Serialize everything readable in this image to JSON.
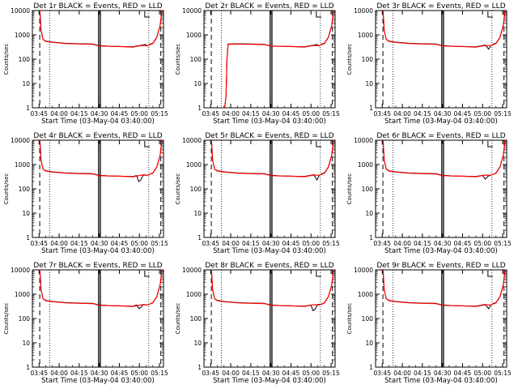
{
  "colors": {
    "events": "#000000",
    "lld": "#ff0000",
    "background": "#ffffff"
  },
  "xlabel": "Start Time (03-May-04 03:40:00)",
  "ylabel": "Counts/sec",
  "x_ticks": [
    "03:45",
    "04:00",
    "04:15",
    "04:30",
    "04:45",
    "05:00",
    "05:15"
  ],
  "y_ticks": [
    "1",
    "10",
    "100",
    "1000",
    "10000"
  ],
  "chart_data": [
    {
      "type": "line",
      "title": "Det 1r BLACK = Events, RED = LLD",
      "yscale": "log",
      "ylim": [
        1,
        10000
      ],
      "xlim_minutes": [
        0,
        98
      ],
      "series": [
        {
          "name": "Events",
          "color": "#000000",
          "x": [
            5.6,
            6.5,
            8,
            10,
            15,
            25,
            35,
            45,
            50,
            58,
            65,
            75,
            82,
            84.5,
            86,
            88,
            90,
            93,
            95.5,
            96.8,
            97.4
          ],
          "y": [
            10000,
            1500,
            650,
            560,
            500,
            450,
            430,
            420,
            360,
            340,
            330,
            320,
            380,
            400,
            350,
            420,
            450,
            800,
            2500,
            10000,
            10000
          ]
        },
        {
          "name": "LLD",
          "color": "#ff0000",
          "x": [
            5.6,
            6.5,
            8,
            10,
            15,
            25,
            35,
            45,
            50,
            58,
            65,
            75,
            82,
            86,
            90,
            93,
            95.5,
            96.8,
            97.4
          ],
          "y": [
            10000,
            1500,
            650,
            540,
            490,
            440,
            420,
            410,
            350,
            335,
            330,
            315,
            370,
            360,
            440,
            780,
            2400,
            10000,
            10000
          ]
        }
      ]
    },
    {
      "type": "line",
      "title": "Det 2r BLACK = Events, RED = LLD",
      "yscale": "log",
      "ylim": [
        1,
        10000
      ],
      "xlim_minutes": [
        0,
        98
      ],
      "series": [
        {
          "name": "Events",
          "color": "#000000",
          "x": [
            15.5,
            16.5,
            17.2,
            18,
            25,
            35,
            45,
            50,
            58,
            65,
            75,
            82,
            84.5,
            86,
            88,
            90,
            93,
            95.5,
            96.8,
            97.4
          ],
          "y": [
            1,
            3,
            100,
            420,
            430,
            420,
            410,
            350,
            340,
            330,
            320,
            380,
            400,
            350,
            420,
            450,
            800,
            2500,
            10000,
            10000
          ]
        },
        {
          "name": "LLD",
          "color": "#ff0000",
          "x": [
            15.5,
            16.5,
            17.2,
            18,
            25,
            35,
            45,
            50,
            58,
            65,
            75,
            82,
            86,
            90,
            93,
            95.5,
            96.8,
            97.4
          ],
          "y": [
            1,
            3,
            100,
            410,
            420,
            410,
            400,
            345,
            335,
            330,
            315,
            370,
            360,
            440,
            780,
            2400,
            10000,
            10000
          ]
        }
      ]
    },
    {
      "type": "line",
      "title": "Det 3r BLACK = Events, RED = LLD",
      "yscale": "log",
      "ylim": [
        1,
        10000
      ],
      "xlim_minutes": [
        0,
        98
      ],
      "series": [
        {
          "name": "Events",
          "color": "#000000",
          "x": [
            5.6,
            6.5,
            8,
            10,
            15,
            25,
            35,
            45,
            50,
            58,
            65,
            75,
            82,
            84.5,
            86,
            88,
            90,
            93,
            95.5,
            96.8,
            97.4
          ],
          "y": [
            10000,
            1500,
            650,
            560,
            500,
            450,
            430,
            420,
            360,
            340,
            330,
            320,
            380,
            260,
            350,
            420,
            450,
            800,
            2500,
            10000,
            10000
          ]
        },
        {
          "name": "LLD",
          "color": "#ff0000",
          "x": [
            5.6,
            6.5,
            8,
            10,
            15,
            25,
            35,
            45,
            50,
            58,
            65,
            75,
            82,
            86,
            90,
            93,
            95.5,
            96.8,
            97.4
          ],
          "y": [
            10000,
            1500,
            650,
            540,
            490,
            440,
            420,
            410,
            350,
            335,
            330,
            315,
            370,
            360,
            440,
            780,
            2400,
            10000,
            10000
          ]
        }
      ]
    },
    {
      "type": "line",
      "title": "Det 4r BLACK = Events, RED = LLD",
      "yscale": "log",
      "ylim": [
        1,
        10000
      ],
      "xlim_minutes": [
        0,
        98
      ],
      "series": [
        {
          "name": "Events",
          "color": "#000000",
          "x": [
            5.6,
            6.5,
            8,
            10,
            15,
            25,
            35,
            45,
            50,
            58,
            65,
            75,
            78,
            79.5,
            81,
            83,
            86,
            90,
            93,
            95.5,
            96.8,
            97.4
          ],
          "y": [
            10000,
            1500,
            650,
            560,
            500,
            450,
            430,
            420,
            360,
            340,
            330,
            320,
            350,
            200,
            230,
            380,
            360,
            450,
            800,
            2500,
            10000,
            10000
          ]
        },
        {
          "name": "LLD",
          "color": "#ff0000",
          "x": [
            5.6,
            6.5,
            8,
            10,
            15,
            25,
            35,
            45,
            50,
            58,
            65,
            75,
            82,
            86,
            90,
            93,
            95.5,
            96.8,
            97.4
          ],
          "y": [
            10000,
            1500,
            650,
            540,
            490,
            440,
            420,
            410,
            350,
            335,
            330,
            315,
            370,
            360,
            440,
            780,
            2400,
            10000,
            10000
          ]
        }
      ]
    },
    {
      "type": "line",
      "title": "Det 5r BLACK = Events, RED = LLD",
      "yscale": "log",
      "ylim": [
        1,
        10000
      ],
      "xlim_minutes": [
        0,
        98
      ],
      "series": [
        {
          "name": "Events",
          "color": "#000000",
          "x": [
            5.6,
            6.5,
            8,
            10,
            15,
            25,
            35,
            45,
            50,
            58,
            65,
            75,
            82,
            84.5,
            86,
            88,
            90,
            93,
            95.5,
            96.8,
            97.4
          ],
          "y": [
            10000,
            1500,
            650,
            560,
            500,
            450,
            430,
            420,
            360,
            340,
            330,
            320,
            380,
            230,
            350,
            420,
            450,
            800,
            2500,
            10000,
            10000
          ]
        },
        {
          "name": "LLD",
          "color": "#ff0000",
          "x": [
            5.6,
            6.5,
            8,
            10,
            15,
            25,
            35,
            45,
            50,
            58,
            65,
            75,
            82,
            86,
            90,
            93,
            95.5,
            96.8,
            97.4
          ],
          "y": [
            10000,
            1500,
            650,
            540,
            490,
            440,
            420,
            410,
            350,
            335,
            330,
            315,
            370,
            360,
            440,
            780,
            2400,
            10000,
            10000
          ]
        }
      ]
    },
    {
      "type": "line",
      "title": "Det 6r BLACK = Events, RED = LLD",
      "yscale": "log",
      "ylim": [
        1,
        10000
      ],
      "xlim_minutes": [
        0,
        98
      ],
      "series": [
        {
          "name": "Events",
          "color": "#000000",
          "x": [
            5.6,
            6.5,
            8,
            10,
            15,
            25,
            35,
            45,
            50,
            58,
            65,
            75,
            80,
            82,
            84,
            86,
            90,
            93,
            95.5,
            96.8,
            97.4
          ],
          "y": [
            10000,
            1500,
            650,
            560,
            500,
            450,
            430,
            420,
            360,
            340,
            330,
            320,
            360,
            250,
            330,
            360,
            450,
            800,
            2500,
            10000,
            10000
          ]
        },
        {
          "name": "LLD",
          "color": "#ff0000",
          "x": [
            5.6,
            6.5,
            8,
            10,
            15,
            25,
            35,
            45,
            50,
            58,
            65,
            75,
            82,
            86,
            90,
            93,
            95.5,
            96.8,
            97.4
          ],
          "y": [
            10000,
            1500,
            650,
            540,
            490,
            440,
            420,
            410,
            350,
            335,
            330,
            315,
            370,
            360,
            440,
            780,
            2400,
            10000,
            10000
          ]
        }
      ]
    },
    {
      "type": "line",
      "title": "Det 7r BLACK = Events, RED = LLD",
      "yscale": "log",
      "ylim": [
        1,
        10000
      ],
      "xlim_minutes": [
        0,
        98
      ],
      "series": [
        {
          "name": "Events",
          "color": "#000000",
          "x": [
            5.6,
            6.5,
            8,
            10,
            15,
            25,
            35,
            45,
            50,
            58,
            65,
            75,
            78,
            79.5,
            81,
            83,
            86,
            90,
            93,
            95.5,
            96.8,
            97.4
          ],
          "y": [
            10000,
            1500,
            650,
            560,
            500,
            450,
            430,
            420,
            360,
            340,
            330,
            320,
            360,
            260,
            280,
            380,
            360,
            450,
            800,
            2500,
            10000,
            10000
          ]
        },
        {
          "name": "LLD",
          "color": "#ff0000",
          "x": [
            5.6,
            6.5,
            8,
            10,
            15,
            25,
            35,
            45,
            50,
            58,
            65,
            75,
            82,
            86,
            90,
            93,
            95.5,
            96.8,
            97.4
          ],
          "y": [
            10000,
            1500,
            650,
            540,
            490,
            440,
            420,
            410,
            350,
            335,
            330,
            315,
            370,
            360,
            440,
            780,
            2400,
            10000,
            10000
          ]
        }
      ]
    },
    {
      "type": "line",
      "title": "Det 8r BLACK = Events, RED = LLD",
      "yscale": "log",
      "ylim": [
        1,
        10000
      ],
      "xlim_minutes": [
        0,
        98
      ],
      "series": [
        {
          "name": "Events",
          "color": "#000000",
          "x": [
            5.6,
            6.5,
            8,
            10,
            15,
            25,
            35,
            45,
            50,
            58,
            65,
            75,
            80,
            81.5,
            83,
            85,
            88,
            90,
            93,
            95.5,
            96.8,
            97.4
          ],
          "y": [
            10000,
            1500,
            650,
            560,
            500,
            450,
            430,
            420,
            360,
            340,
            330,
            320,
            360,
            210,
            240,
            380,
            380,
            450,
            800,
            2500,
            10000,
            10000
          ]
        },
        {
          "name": "LLD",
          "color": "#ff0000",
          "x": [
            5.6,
            6.5,
            8,
            10,
            15,
            25,
            35,
            45,
            50,
            58,
            65,
            75,
            82,
            86,
            90,
            93,
            95.5,
            96.8,
            97.4
          ],
          "y": [
            10000,
            1500,
            650,
            540,
            490,
            440,
            420,
            410,
            350,
            335,
            330,
            315,
            370,
            360,
            440,
            780,
            2400,
            10000,
            10000
          ]
        }
      ]
    },
    {
      "type": "line",
      "title": "Det 9r BLACK = Events, RED = LLD",
      "yscale": "log",
      "ylim": [
        1,
        10000
      ],
      "xlim_minutes": [
        0,
        98
      ],
      "series": [
        {
          "name": "Events",
          "color": "#000000",
          "x": [
            5.6,
            6.5,
            8,
            10,
            15,
            25,
            35,
            45,
            50,
            58,
            65,
            75,
            82,
            84.5,
            86,
            88,
            90,
            93,
            95.5,
            96.8,
            97.4
          ],
          "y": [
            10000,
            1500,
            650,
            560,
            500,
            450,
            430,
            420,
            360,
            340,
            330,
            320,
            380,
            250,
            350,
            420,
            450,
            800,
            2500,
            10000,
            10000
          ]
        },
        {
          "name": "LLD",
          "color": "#ff0000",
          "x": [
            5.6,
            6.5,
            8,
            10,
            15,
            25,
            35,
            45,
            50,
            58,
            65,
            75,
            82,
            86,
            90,
            93,
            95.5,
            96.8,
            97.4
          ],
          "y": [
            10000,
            1500,
            650,
            540,
            490,
            440,
            420,
            410,
            350,
            335,
            330,
            315,
            370,
            360,
            440,
            780,
            2400,
            10000,
            10000
          ]
        }
      ]
    }
  ]
}
